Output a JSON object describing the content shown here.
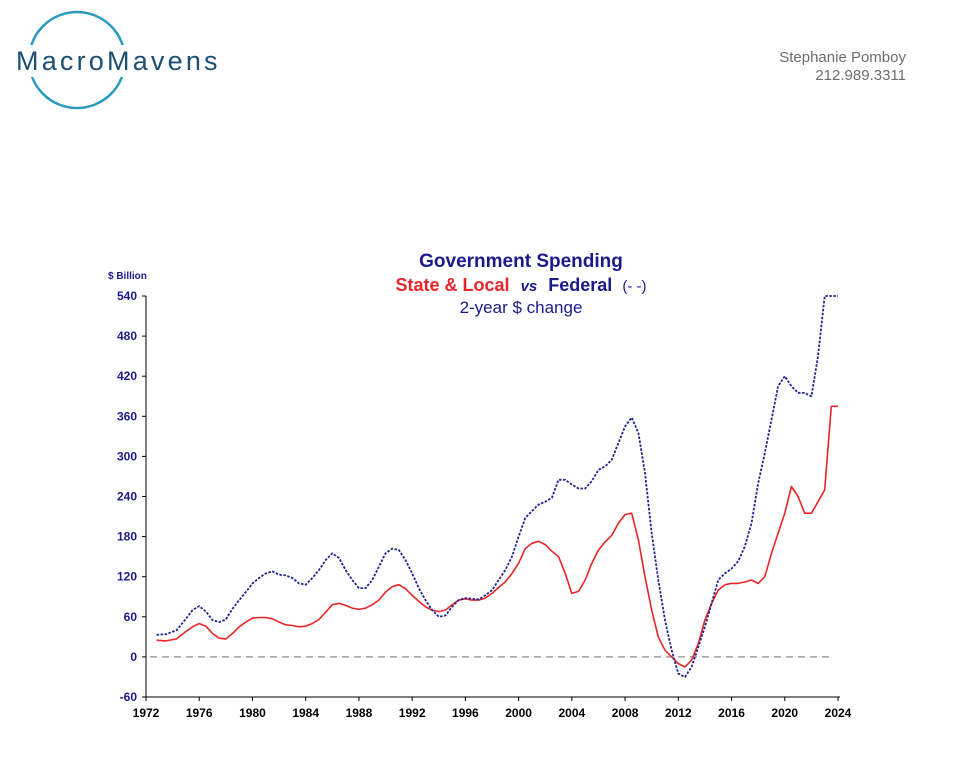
{
  "header": {
    "brand": "MacroMavens",
    "contact_name": "Stephanie Pomboy",
    "contact_phone": "212.989.3311"
  },
  "colors": {
    "state_local": "#e8262a",
    "federal": "#23238f",
    "title": "#1a1a8c",
    "zero_line": "#a0a0a0",
    "logo_arc": "#2a9bbf"
  },
  "chart_data": {
    "type": "line",
    "title": "Government Spending",
    "subtitle_parts": {
      "state_local": "State & Local",
      "vs": "vs",
      "federal": "Federal",
      "federal_marker": "(- -)"
    },
    "subtitle2": "2-year  $ change",
    "ylabel": "$ Billion",
    "ylim": [
      -60,
      540
    ],
    "yticks": [
      "540",
      "480",
      "420",
      "360",
      "300",
      "240",
      "180",
      "120",
      "60",
      "0",
      "-60"
    ],
    "xlim": [
      1972,
      2024
    ],
    "xticks": [
      "1972",
      "1976",
      "1980",
      "1984",
      "1988",
      "1992",
      "1996",
      "2000",
      "2004",
      "2008",
      "2012",
      "2016",
      "2020",
      "2024"
    ],
    "zero_line": 0,
    "series": [
      {
        "name": "State & Local",
        "style": "solid",
        "x": [
          1972.8,
          1973.5,
          1974.3,
          1975.0,
          1975.5,
          1976.0,
          1976.5,
          1977.0,
          1977.5,
          1978.0,
          1978.5,
          1979.0,
          1979.5,
          1980.0,
          1980.5,
          1981.0,
          1981.5,
          1982.0,
          1982.5,
          1983.0,
          1983.5,
          1984.0,
          1984.5,
          1985.0,
          1985.5,
          1986.0,
          1986.5,
          1987.0,
          1987.5,
          1988.0,
          1988.5,
          1989.0,
          1989.5,
          1990.0,
          1990.5,
          1991.0,
          1991.5,
          1992.0,
          1992.5,
          1993.0,
          1993.5,
          1994.0,
          1994.5,
          1995.0,
          1995.5,
          1996.0,
          1996.5,
          1997.0,
          1997.5,
          1998.0,
          1998.5,
          1999.0,
          1999.5,
          2000.0,
          2000.5,
          2001.0,
          2001.5,
          2002.0,
          2002.5,
          2003.0,
          2003.5,
          2004.0,
          2004.5,
          2005.0,
          2005.5,
          2006.0,
          2006.5,
          2007.0,
          2007.5,
          2008.0,
          2008.5,
          2009.0,
          2009.5,
          2010.0,
          2010.5,
          2011.0,
          2011.5,
          2012.0,
          2012.5,
          2013.0,
          2013.5,
          2014.0,
          2014.5,
          2015.0,
          2015.5,
          2016.0,
          2016.5,
          2017.0,
          2017.5,
          2018.0,
          2018.5,
          2019.0,
          2019.5,
          2020.0,
          2020.5,
          2021.0,
          2021.5,
          2022.0,
          2022.5,
          2023.0,
          2023.5,
          2024.0
        ],
        "y": [
          25,
          24,
          27,
          38,
          45,
          50,
          46,
          35,
          28,
          27,
          35,
          45,
          52,
          58,
          59,
          59,
          57,
          52,
          48,
          47,
          45,
          46,
          50,
          56,
          67,
          78,
          80,
          77,
          73,
          71,
          73,
          78,
          85,
          97,
          105,
          108,
          102,
          92,
          83,
          75,
          70,
          68,
          70,
          78,
          85,
          87,
          85,
          85,
          88,
          95,
          104,
          112,
          125,
          140,
          162,
          170,
          173,
          168,
          158,
          150,
          125,
          95,
          98,
          115,
          140,
          160,
          172,
          182,
          200,
          213,
          215,
          175,
          120,
          70,
          30,
          10,
          0,
          -10,
          -15,
          -5,
          20,
          55,
          80,
          100,
          108,
          110,
          110,
          112,
          115,
          110,
          120,
          155,
          185,
          215,
          255,
          240,
          215,
          215,
          232,
          250,
          375,
          375
        ]
      },
      {
        "name": "Federal",
        "style": "dashed",
        "x": [
          1972.8,
          1973.5,
          1974.3,
          1975.0,
          1975.5,
          1976.0,
          1976.5,
          1977.0,
          1977.5,
          1978.0,
          1978.5,
          1979.0,
          1979.5,
          1980.0,
          1980.5,
          1981.0,
          1981.5,
          1982.0,
          1982.5,
          1983.0,
          1983.5,
          1984.0,
          1984.5,
          1985.0,
          1985.5,
          1986.0,
          1986.5,
          1987.0,
          1987.5,
          1988.0,
          1988.5,
          1989.0,
          1989.5,
          1990.0,
          1990.5,
          1991.0,
          1991.5,
          1992.0,
          1992.5,
          1993.0,
          1993.5,
          1994.0,
          1994.5,
          1995.0,
          1995.5,
          1996.0,
          1996.5,
          1997.0,
          1997.5,
          1998.0,
          1998.5,
          1999.0,
          1999.5,
          2000.0,
          2000.5,
          2001.0,
          2001.5,
          2002.0,
          2002.5,
          2003.0,
          2003.5,
          2004.0,
          2004.5,
          2005.0,
          2005.5,
          2006.0,
          2006.5,
          2007.0,
          2007.5,
          2008.0,
          2008.5,
          2009.0,
          2009.5,
          2010.0,
          2010.5,
          2011.0,
          2011.5,
          2012.0,
          2012.5,
          2013.0,
          2013.5,
          2014.0,
          2014.5,
          2015.0,
          2015.5,
          2016.0,
          2016.5,
          2017.0,
          2017.5,
          2018.0,
          2018.5,
          2019.0,
          2019.5,
          2020.0,
          2020.5,
          2021.0,
          2021.5,
          2022.0,
          2022.5,
          2023.0,
          2023.5,
          2024.0
        ],
        "y": [
          33,
          34,
          40,
          57,
          70,
          76,
          68,
          55,
          52,
          56,
          72,
          85,
          97,
          110,
          118,
          125,
          128,
          123,
          122,
          118,
          110,
          108,
          118,
          130,
          145,
          155,
          148,
          130,
          115,
          103,
          103,
          115,
          135,
          155,
          162,
          160,
          145,
          125,
          103,
          85,
          70,
          60,
          62,
          75,
          85,
          88,
          87,
          86,
          92,
          100,
          115,
          130,
          150,
          180,
          208,
          218,
          228,
          232,
          238,
          265,
          265,
          258,
          252,
          252,
          263,
          280,
          285,
          295,
          320,
          345,
          358,
          335,
          275,
          185,
          115,
          55,
          10,
          -25,
          -30,
          -15,
          15,
          45,
          80,
          115,
          125,
          132,
          143,
          165,
          200,
          260,
          305,
          355,
          405,
          420,
          405,
          395,
          395,
          390,
          450,
          540,
          540,
          540
        ]
      }
    ]
  }
}
